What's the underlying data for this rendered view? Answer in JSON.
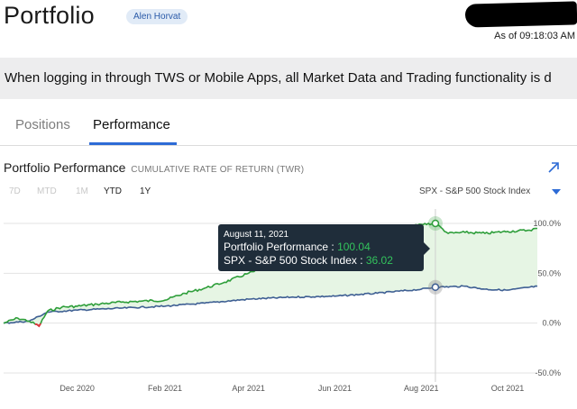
{
  "header": {
    "title": "Portfolio",
    "user_badge": "Alen Horvat",
    "as_of": "As of 09:18:03 AM"
  },
  "banner": {
    "text": "When logging in through TWS or Mobile Apps, all Market Data and Trading functionality is d"
  },
  "tabs": [
    {
      "label": "Positions",
      "active": false
    },
    {
      "label": "Performance",
      "active": true
    }
  ],
  "card": {
    "title": "Portfolio Performance",
    "subtitle": "CUMULATIVE RATE OF RETURN (TWR)",
    "expand_icon": "arrow-up-right-icon",
    "ranges": [
      {
        "label": "7D",
        "active": false
      },
      {
        "label": "MTD",
        "active": false
      },
      {
        "label": "1M",
        "active": false
      },
      {
        "label": "YTD",
        "active": true
      },
      {
        "label": "1Y",
        "active": true
      }
    ],
    "benchmark": "SPX - S&P 500 Stock Index"
  },
  "tooltip": {
    "date": "August 11, 2021",
    "portfolio_label": "Portfolio Performance : ",
    "portfolio_value": "100.04",
    "spx_label": "SPX - S&P 500 Stock Index : ",
    "spx_value": "36.02"
  },
  "colors": {
    "portfolio_line": "#2e9e3a",
    "portfolio_fill": "#e6f5e4",
    "spx_line": "#3e5f93",
    "negative_segment": "#e0303a",
    "accent": "#2d6bd6"
  },
  "chart_data": {
    "type": "line",
    "y_unit": "%",
    "ylim": [
      -50,
      100
    ],
    "y_ticks": [
      "100.0%",
      "50.0%",
      "0.0%",
      "-50.0%"
    ],
    "y_tick_values": [
      100,
      50,
      0,
      -50
    ],
    "x_ticks": [
      "Dec 2020",
      "Feb 2021",
      "Apr 2021",
      "Jun 2021",
      "Aug 2021",
      "Oct 2021"
    ],
    "x_tick_dates": [
      "2020-12-01",
      "2021-02-01",
      "2021-04-01",
      "2021-06-01",
      "2021-08-01",
      "2021-10-01"
    ],
    "x_range": [
      "2020-10-10",
      "2021-10-22"
    ],
    "grid": true,
    "series": [
      {
        "name": "Portfolio Performance",
        "x": [
          "2020-10-10",
          "2020-10-20",
          "2020-10-28",
          "2020-11-04",
          "2020-11-10",
          "2020-11-20",
          "2020-12-01",
          "2020-12-15",
          "2021-01-01",
          "2021-01-15",
          "2021-02-01",
          "2021-02-15",
          "2021-03-01",
          "2021-03-15",
          "2021-04-01",
          "2021-04-15",
          "2021-05-01",
          "2021-05-15",
          "2021-06-01",
          "2021-06-15",
          "2021-07-01",
          "2021-07-15",
          "2021-08-01",
          "2021-08-11",
          "2021-08-20",
          "2021-09-01",
          "2021-09-15",
          "2021-10-01",
          "2021-10-15",
          "2021-10-22"
        ],
        "values": [
          0,
          5,
          2,
          -3,
          12,
          16,
          17,
          19,
          21,
          22,
          23,
          30,
          35,
          41,
          50,
          56,
          62,
          66,
          72,
          76,
          82,
          93,
          99,
          100.04,
          90,
          91,
          90,
          92,
          93,
          95
        ]
      },
      {
        "name": "SPX - S&P 500 Stock Index",
        "x": [
          "2020-10-10",
          "2020-10-28",
          "2020-11-10",
          "2020-12-01",
          "2021-01-01",
          "2021-02-01",
          "2021-03-01",
          "2021-04-01",
          "2021-05-01",
          "2021-06-01",
          "2021-07-01",
          "2021-08-01",
          "2021-08-11",
          "2021-09-01",
          "2021-09-15",
          "2021-10-01",
          "2021-10-22"
        ],
        "values": [
          0,
          2,
          11,
          13,
          15,
          17,
          20,
          24,
          26,
          27,
          30,
          34,
          36.02,
          37,
          34,
          33,
          37
        ]
      }
    ],
    "highlight": {
      "date": "2021-08-11",
      "series_values": [
        100.04,
        36.02
      ]
    }
  }
}
